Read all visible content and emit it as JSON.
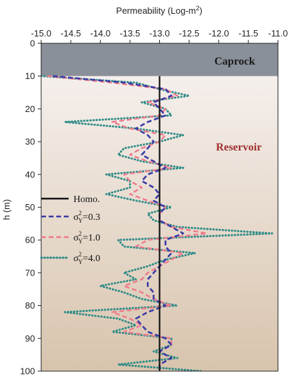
{
  "chart_data": {
    "type": "line",
    "xlabel_text": "Permeability (Log-m",
    "xlabel_sup": "2",
    "xlabel_close": ")",
    "ylabel": "h (m)",
    "xlim": [
      -15.0,
      -11.0
    ],
    "ylim": [
      0,
      100
    ],
    "x_ticks": [
      "-15.0",
      "-14.5",
      "-14.0",
      "-13.5",
      "-13.0",
      "-12.5",
      "-12.0",
      "-11.5",
      "-11.0"
    ],
    "y_ticks": [
      "0",
      "10",
      "20",
      "30",
      "40",
      "50",
      "60",
      "70",
      "80",
      "90",
      "100"
    ],
    "caprock_label": "Caprock",
    "reservoir_label": "Reservoir",
    "caprock_range": [
      0,
      10
    ],
    "caprock_permeability": -15.0,
    "colors": {
      "caprock": "#8a9099",
      "reservoir_top": "#f5efec",
      "reservoir_bottom": "#d8c4ad",
      "homo": "#111111",
      "s03": "#3a3aa6",
      "s10": "#ef7a8c",
      "s40": "#2f8c87"
    },
    "legend": {
      "homo": "Homo.",
      "sigma": "σ",
      "sup": "2",
      "sub": "Y",
      "s03": "=0.3",
      "s10": "=1.0",
      "s40": "=4.0"
    },
    "series": [
      {
        "key": "homo",
        "points": [
          [
            -13.0,
            10
          ],
          [
            -13.0,
            100
          ]
        ]
      },
      {
        "key": "s03",
        "points": [
          [
            -14.8,
            10
          ],
          [
            -13.6,
            12
          ],
          [
            -12.9,
            14
          ],
          [
            -12.8,
            16
          ],
          [
            -13.1,
            18
          ],
          [
            -13.0,
            20
          ],
          [
            -12.9,
            22
          ],
          [
            -13.2,
            24
          ],
          [
            -13.4,
            26
          ],
          [
            -13.2,
            28
          ],
          [
            -13.1,
            30
          ],
          [
            -13.2,
            32
          ],
          [
            -13.3,
            34
          ],
          [
            -13.1,
            36
          ],
          [
            -12.9,
            38
          ],
          [
            -13.2,
            40
          ],
          [
            -13.3,
            42
          ],
          [
            -13.1,
            44
          ],
          [
            -13.0,
            46
          ],
          [
            -13.1,
            48
          ],
          [
            -12.9,
            50
          ],
          [
            -13.0,
            52
          ],
          [
            -13.0,
            54
          ],
          [
            -12.8,
            56
          ],
          [
            -12.6,
            58
          ],
          [
            -12.9,
            60
          ],
          [
            -12.9,
            62
          ],
          [
            -12.8,
            64
          ],
          [
            -12.9,
            66
          ],
          [
            -13.0,
            68
          ],
          [
            -13.1,
            70
          ],
          [
            -13.2,
            72
          ],
          [
            -13.2,
            74
          ],
          [
            -13.1,
            76
          ],
          [
            -13.1,
            78
          ],
          [
            -12.9,
            80
          ],
          [
            -13.2,
            82
          ],
          [
            -13.4,
            84
          ],
          [
            -13.3,
            86
          ],
          [
            -13.2,
            88
          ],
          [
            -12.9,
            90
          ],
          [
            -12.8,
            92
          ],
          [
            -13.0,
            94
          ],
          [
            -12.8,
            96
          ],
          [
            -13.0,
            98
          ],
          [
            -13.0,
            100
          ]
        ]
      },
      {
        "key": "s10",
        "points": [
          [
            -14.9,
            10
          ],
          [
            -13.8,
            12
          ],
          [
            -12.9,
            14
          ],
          [
            -12.7,
            16
          ],
          [
            -13.2,
            18
          ],
          [
            -12.9,
            20
          ],
          [
            -13.0,
            22
          ],
          [
            -13.8,
            24
          ],
          [
            -13.5,
            26
          ],
          [
            -12.9,
            28
          ],
          [
            -13.0,
            30
          ],
          [
            -13.3,
            32
          ],
          [
            -13.5,
            34
          ],
          [
            -13.2,
            36
          ],
          [
            -12.8,
            38
          ],
          [
            -13.6,
            40
          ],
          [
            -13.5,
            42
          ],
          [
            -13.3,
            44
          ],
          [
            -13.5,
            46
          ],
          [
            -13.2,
            48
          ],
          [
            -12.9,
            50
          ],
          [
            -13.0,
            52
          ],
          [
            -13.0,
            54
          ],
          [
            -12.8,
            56
          ],
          [
            -12.2,
            58
          ],
          [
            -13.2,
            60
          ],
          [
            -13.4,
            62
          ],
          [
            -12.6,
            64
          ],
          [
            -12.8,
            66
          ],
          [
            -13.0,
            68
          ],
          [
            -13.2,
            70
          ],
          [
            -13.3,
            72
          ],
          [
            -13.6,
            74
          ],
          [
            -13.3,
            76
          ],
          [
            -13.1,
            78
          ],
          [
            -12.8,
            80
          ],
          [
            -13.8,
            82
          ],
          [
            -13.5,
            84
          ],
          [
            -13.3,
            86
          ],
          [
            -13.6,
            88
          ],
          [
            -12.8,
            90
          ],
          [
            -12.8,
            92
          ],
          [
            -13.0,
            94
          ],
          [
            -12.8,
            96
          ],
          [
            -13.0,
            98
          ],
          [
            -13.0,
            100
          ]
        ]
      },
      {
        "key": "s40",
        "points": [
          [
            -15.0,
            10
          ],
          [
            -13.4,
            12
          ],
          [
            -13.0,
            14
          ],
          [
            -12.5,
            16
          ],
          [
            -13.3,
            18
          ],
          [
            -12.9,
            20
          ],
          [
            -12.8,
            22
          ],
          [
            -14.6,
            24
          ],
          [
            -13.4,
            26
          ],
          [
            -12.6,
            28
          ],
          [
            -13.0,
            30
          ],
          [
            -13.6,
            32
          ],
          [
            -13.7,
            34
          ],
          [
            -13.3,
            36
          ],
          [
            -12.6,
            38
          ],
          [
            -13.9,
            40
          ],
          [
            -13.5,
            42
          ],
          [
            -13.5,
            44
          ],
          [
            -13.9,
            46
          ],
          [
            -13.4,
            48
          ],
          [
            -12.8,
            50
          ],
          [
            -13.2,
            52
          ],
          [
            -13.1,
            54
          ],
          [
            -12.7,
            56
          ],
          [
            -11.1,
            58
          ],
          [
            -13.7,
            60
          ],
          [
            -13.6,
            62
          ],
          [
            -12.4,
            64
          ],
          [
            -12.9,
            66
          ],
          [
            -13.2,
            68
          ],
          [
            -13.6,
            70
          ],
          [
            -13.4,
            72
          ],
          [
            -14.0,
            74
          ],
          [
            -13.6,
            76
          ],
          [
            -13.3,
            78
          ],
          [
            -12.7,
            80
          ],
          [
            -14.6,
            82
          ],
          [
            -13.7,
            84
          ],
          [
            -13.4,
            86
          ],
          [
            -13.8,
            88
          ],
          [
            -12.8,
            90
          ],
          [
            -12.8,
            92
          ],
          [
            -13.1,
            94
          ],
          [
            -12.7,
            96
          ],
          [
            -13.7,
            98
          ],
          [
            -12.3,
            100
          ]
        ]
      }
    ]
  }
}
